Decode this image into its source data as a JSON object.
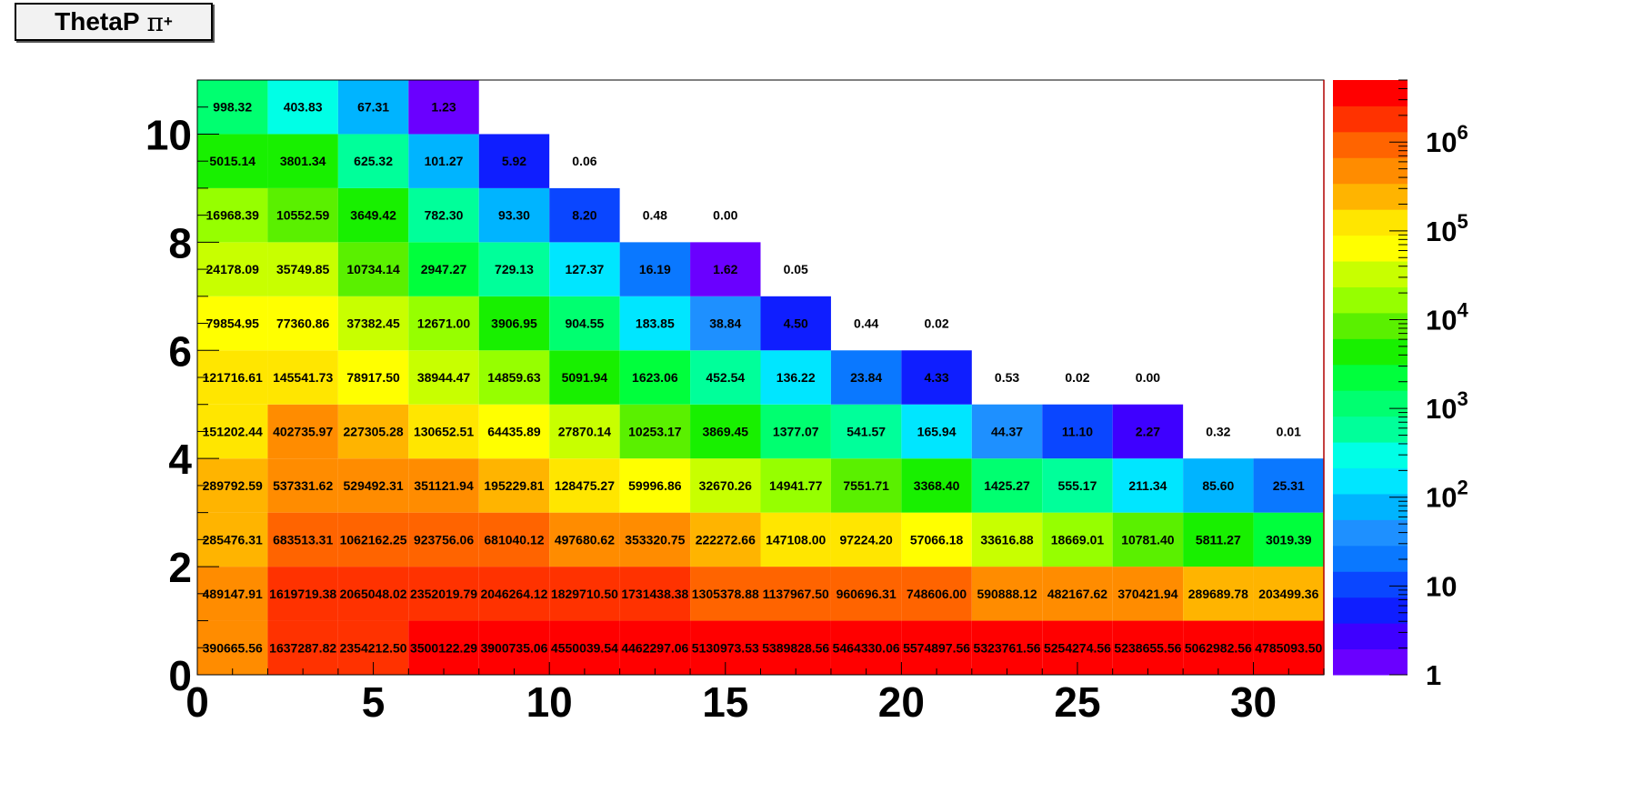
{
  "title": {
    "main": "ThetaP",
    "particle": "π",
    "charge": "+"
  },
  "chart_data": {
    "type": "heatmap",
    "title": "ThetaP π+",
    "x_bin_edges": [
      0,
      2,
      4,
      6,
      8,
      10,
      12,
      14,
      16,
      18,
      20,
      22,
      24,
      26,
      28,
      30,
      32
    ],
    "y_bin_edges": [
      0,
      1,
      2,
      3,
      4,
      5,
      6,
      7,
      8,
      9,
      10,
      11
    ],
    "xlim": [
      0,
      32
    ],
    "ylim": [
      0,
      11
    ],
    "x_ticks": [
      0,
      5,
      10,
      15,
      20,
      25,
      30
    ],
    "y_ticks": [
      0,
      2,
      4,
      6,
      8,
      10
    ],
    "z_scale": "log",
    "zlim": [
      1,
      5000000
    ],
    "colorbar_labels": [
      {
        "value": 1,
        "base": "1",
        "exp": ""
      },
      {
        "value": 10,
        "base": "10",
        "exp": ""
      },
      {
        "value": 100,
        "base": "10",
        "exp": "2"
      },
      {
        "value": 1000,
        "base": "10",
        "exp": "3"
      },
      {
        "value": 10000,
        "base": "10",
        "exp": "4"
      },
      {
        "value": 100000,
        "base": "10",
        "exp": "5"
      },
      {
        "value": 1000000,
        "base": "10",
        "exp": "6"
      }
    ],
    "palette": [
      "#6a00ff",
      "#3e00ff",
      "#0f1eff",
      "#0a46ff",
      "#0a78ff",
      "#1e90ff",
      "#00b4ff",
      "#00e6ff",
      "#00ffe6",
      "#00ff9a",
      "#00ff70",
      "#00ff3c",
      "#18f000",
      "#5af000",
      "#96ff00",
      "#c8ff00",
      "#ffff00",
      "#ffe600",
      "#ffb400",
      "#ff8c00",
      "#ff6400",
      "#ff3200",
      "#ff0000"
    ],
    "rows": [
      [
        "390665.56",
        "1637287.82",
        "2354212.50",
        "3500122.29",
        "3900735.06",
        "4550039.54",
        "4462297.06",
        "5130973.53",
        "5389828.56",
        "5464330.06",
        "5574897.56",
        "5323761.56",
        "5254274.56",
        "5238655.56",
        "5062982.56",
        "4785093.50"
      ],
      [
        "489147.91",
        "1619719.38",
        "2065048.02",
        "2352019.79",
        "2046264.12",
        "1829710.50",
        "1731438.38",
        "1305378.88",
        "1137967.50",
        "960696.31",
        "748606.00",
        "590888.12",
        "482167.62",
        "370421.94",
        "289689.78",
        "203499.36"
      ],
      [
        "285476.31",
        "683513.31",
        "1062162.25",
        "923756.06",
        "681040.12",
        "497680.62",
        "353320.75",
        "222272.66",
        "147108.00",
        "97224.20",
        "57066.18",
        "33616.88",
        "18669.01",
        "10781.40",
        "5811.27",
        "3019.39"
      ],
      [
        "289792.59",
        "537331.62",
        "529492.31",
        "351121.94",
        "195229.81",
        "128475.27",
        "59996.86",
        "32670.26",
        "14941.77",
        "7551.71",
        "3368.40",
        "1425.27",
        "555.17",
        "211.34",
        "85.60",
        "25.31"
      ],
      [
        "151202.44",
        "402735.97",
        "227305.28",
        "130652.51",
        "64435.89",
        "27870.14",
        "10253.17",
        "3869.45",
        "1377.07",
        "541.57",
        "165.94",
        "44.37",
        "11.10",
        "2.27",
        "0.32",
        "0.01"
      ],
      [
        "121716.61",
        "145541.73",
        "78917.50",
        "38944.47",
        "14859.63",
        "5091.94",
        "1623.06",
        "452.54",
        "136.22",
        "23.84",
        "4.33",
        "0.53",
        "0.02",
        "0.00",
        "",
        ""
      ],
      [
        "79854.95",
        "77360.86",
        "37382.45",
        "12671.00",
        "3906.95",
        "904.55",
        "183.85",
        "38.84",
        "4.50",
        "0.44",
        "0.02",
        "",
        "",
        "",
        "",
        ""
      ],
      [
        "24178.09",
        "35749.85",
        "10734.14",
        "2947.27",
        "729.13",
        "127.37",
        "16.19",
        "1.62",
        "0.05",
        "",
        "",
        "",
        "",
        "",
        "",
        ""
      ],
      [
        "16968.39",
        "10552.59",
        "3649.42",
        "782.30",
        "93.30",
        "8.20",
        "0.48",
        "0.00",
        "",
        "",
        "",
        "",
        "",
        "",
        "",
        ""
      ],
      [
        "5015.14",
        "3801.34",
        "625.32",
        "101.27",
        "5.92",
        "0.06",
        "",
        "",
        "",
        "",
        "",
        "",
        "",
        "",
        "",
        ""
      ],
      [
        "998.32",
        "403.83",
        "67.31",
        "1.23",
        "",
        "",
        "",
        "",
        "",
        "",
        "",
        "",
        "",
        "",
        "",
        ""
      ]
    ]
  }
}
